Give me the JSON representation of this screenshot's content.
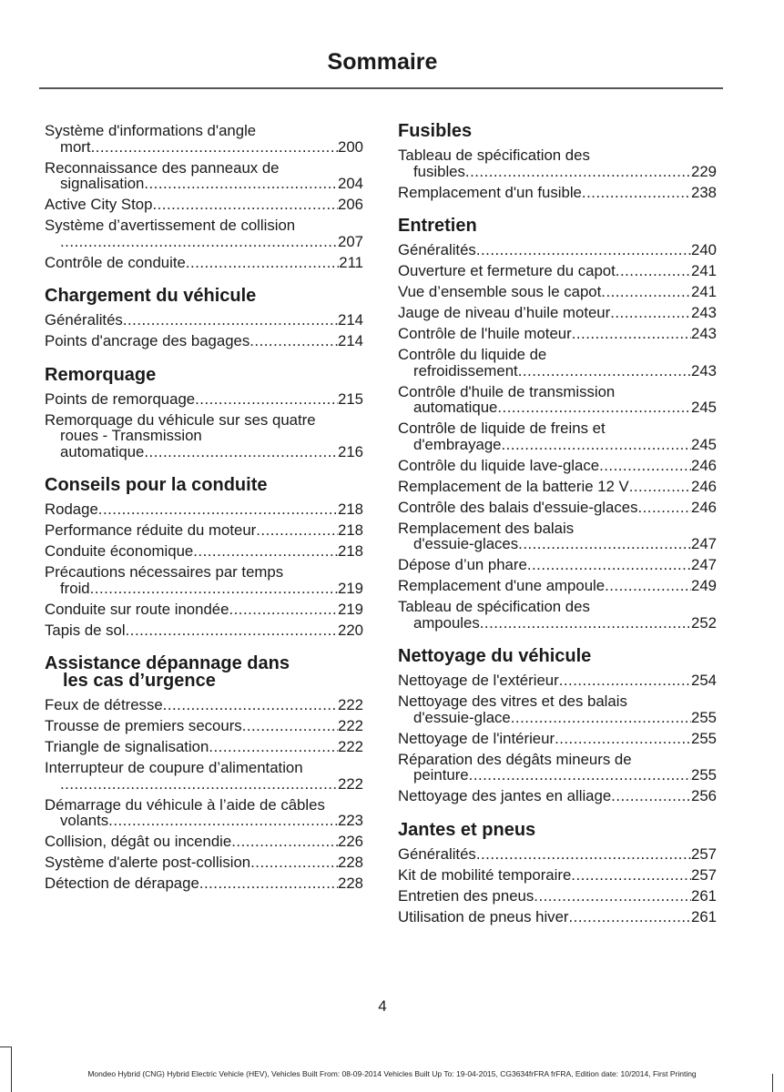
{
  "header": {
    "title": "Sommaire"
  },
  "left_column": [
    {
      "heading": [],
      "entries": [
        {
          "lines": [
            "Système d'informations d'angle",
            "mort"
          ],
          "page": "200"
        },
        {
          "lines": [
            "Reconnaissance des panneaux de",
            "signalisation"
          ],
          "page": "204"
        },
        {
          "lines": [
            "Active City Stop"
          ],
          "page": "206"
        },
        {
          "lines": [
            "Système d’avertissement de collision",
            ""
          ],
          "page": "207"
        },
        {
          "lines": [
            "Contrôle de conduite"
          ],
          "page": "211"
        }
      ]
    },
    {
      "heading": [
        "Chargement du véhicule"
      ],
      "entries": [
        {
          "lines": [
            "Généralités"
          ],
          "page": "214"
        },
        {
          "lines": [
            "Points d'ancrage des bagages"
          ],
          "page": "214"
        }
      ]
    },
    {
      "heading": [
        "Remorquage"
      ],
      "entries": [
        {
          "lines": [
            "Points de remorquage"
          ],
          "page": "215"
        },
        {
          "lines": [
            "Remorquage du véhicule sur ses quatre",
            "roues - Transmission",
            "automatique"
          ],
          "page": "216"
        }
      ]
    },
    {
      "heading": [
        "Conseils pour la conduite"
      ],
      "entries": [
        {
          "lines": [
            "Rodage"
          ],
          "page": "218"
        },
        {
          "lines": [
            "Performance réduite du moteur"
          ],
          "page": "218"
        },
        {
          "lines": [
            "Conduite économique"
          ],
          "page": "218"
        },
        {
          "lines": [
            "Précautions nécessaires par temps",
            "froid"
          ],
          "page": "219"
        },
        {
          "lines": [
            "Conduite sur route inondée"
          ],
          "page": "219"
        },
        {
          "lines": [
            "Tapis de sol"
          ],
          "page": "220"
        }
      ]
    },
    {
      "heading": [
        "Assistance dépannage dans",
        "les cas d’urgence"
      ],
      "entries": [
        {
          "lines": [
            "Feux de détresse"
          ],
          "page": "222"
        },
        {
          "lines": [
            "Trousse de premiers secours"
          ],
          "page": "222"
        },
        {
          "lines": [
            "Triangle de signalisation"
          ],
          "page": "222"
        },
        {
          "lines": [
            "Interrupteur de coupure d’alimentation",
            ""
          ],
          "page": "222"
        },
        {
          "lines": [
            "Démarrage du véhicule à l’aide de câbles",
            "volants"
          ],
          "page": "223"
        },
        {
          "lines": [
            "Collision, dégât ou incendie"
          ],
          "page": "226"
        },
        {
          "lines": [
            "Système d'alerte post-collision"
          ],
          "page": "228"
        },
        {
          "lines": [
            "Détection de dérapage"
          ],
          "page": "228"
        }
      ]
    }
  ],
  "right_column": [
    {
      "heading": [
        "Fusibles"
      ],
      "entries": [
        {
          "lines": [
            "Tableau de spécification des",
            "fusibles"
          ],
          "page": "229"
        },
        {
          "lines": [
            "Remplacement d'un fusible"
          ],
          "page": "238"
        }
      ]
    },
    {
      "heading": [
        "Entretien"
      ],
      "entries": [
        {
          "lines": [
            "Généralités"
          ],
          "page": "240"
        },
        {
          "lines": [
            "Ouverture et fermeture du capot"
          ],
          "page": "241"
        },
        {
          "lines": [
            "Vue d’ensemble sous le capot"
          ],
          "page": "241"
        },
        {
          "lines": [
            "Jauge de niveau d’huile moteur"
          ],
          "page": "243"
        },
        {
          "lines": [
            "Contrôle de l'huile moteur"
          ],
          "page": "243"
        },
        {
          "lines": [
            "Contrôle du liquide de",
            "refroidissement"
          ],
          "page": "243"
        },
        {
          "lines": [
            "Contrôle d'huile de transmission",
            "automatique"
          ],
          "page": "245"
        },
        {
          "lines": [
            "Contrôle de liquide de freins et",
            "d'embrayage"
          ],
          "page": "245"
        },
        {
          "lines": [
            "Contrôle du liquide lave-glace"
          ],
          "page": "246"
        },
        {
          "lines": [
            "Remplacement de la batterie 12 V"
          ],
          "page": "246"
        },
        {
          "lines": [
            "Contrôle des balais d'essuie-glaces"
          ],
          "page": "246"
        },
        {
          "lines": [
            "Remplacement des balais",
            "d'essuie-glaces"
          ],
          "page": "247"
        },
        {
          "lines": [
            "Dépose d’un phare"
          ],
          "page": "247"
        },
        {
          "lines": [
            "Remplacement d'une ampoule"
          ],
          "page": "249"
        },
        {
          "lines": [
            "Tableau de spécification des",
            "ampoules"
          ],
          "page": "252"
        }
      ]
    },
    {
      "heading": [
        "Nettoyage du véhicule"
      ],
      "entries": [
        {
          "lines": [
            "Nettoyage de l'extérieur"
          ],
          "page": "254"
        },
        {
          "lines": [
            "Nettoyage des vitres et des balais",
            "d'essuie-glace"
          ],
          "page": "255"
        },
        {
          "lines": [
            "Nettoyage de l'intérieur"
          ],
          "page": "255"
        },
        {
          "lines": [
            "Réparation des dégâts mineurs de",
            "peinture"
          ],
          "page": "255"
        },
        {
          "lines": [
            "Nettoyage des jantes en alliage"
          ],
          "page": "256"
        }
      ]
    },
    {
      "heading": [
        "Jantes et pneus"
      ],
      "entries": [
        {
          "lines": [
            "Généralités"
          ],
          "page": "257"
        },
        {
          "lines": [
            "Kit de mobilité temporaire"
          ],
          "page": "257"
        },
        {
          "lines": [
            "Entretien des pneus"
          ],
          "page": "261"
        },
        {
          "lines": [
            "Utilisation de pneus hiver"
          ],
          "page": "261"
        }
      ]
    }
  ],
  "page_number": "4",
  "footer": "Mondeo Hybrid (CNG) Hybrid Electric Vehicle (HEV), Vehicles Built From: 08-09-2014 Vehicles Built Up To: 19-04-2015, CG3634frFRA frFRA, Edition date: 10/2014, First Printing"
}
